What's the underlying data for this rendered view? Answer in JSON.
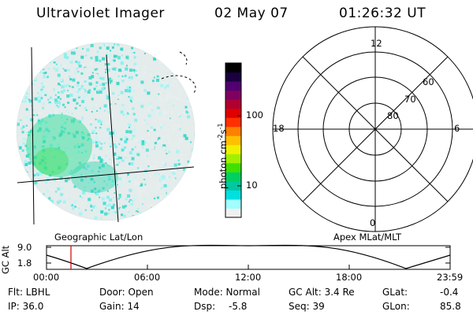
{
  "header": {
    "instrument": "Ultraviolet Imager",
    "date": "02 May 07",
    "time": "01:26:32 UT"
  },
  "colorbar": {
    "unit_label": "photon cm",
    "unit_exp1": "-2",
    "unit_mid": "s",
    "unit_exp2": "-1",
    "ticks": [
      "100",
      "10"
    ],
    "colors": [
      "#f0f0f0",
      "#a0ffff",
      "#00e0e0",
      "#00c8a0",
      "#00d060",
      "#40e000",
      "#a0f000",
      "#f0f000",
      "#ffc000",
      "#ff8000",
      "#ff3000",
      "#e00000",
      "#b00030",
      "#800060",
      "#500070",
      "#1a0040",
      "#000000"
    ]
  },
  "polar": {
    "top": "12",
    "right": "6",
    "left": "18",
    "bottom": "0",
    "lat_labels": [
      "60",
      "70",
      "80"
    ]
  },
  "coords": {
    "left": "Geographic Lat/Lon",
    "right": "Apex MLat/MLT"
  },
  "timeline": {
    "axis_label": "GC Alt",
    "y_top": "9.0",
    "y_bottom": "1.8",
    "x_ticks": [
      "00:00",
      "06:00",
      "12:00",
      "18:00",
      "23:59"
    ]
  },
  "info": {
    "flt": "Flt: LBHL",
    "door": "Door: Open",
    "mode": "Mode: Normal",
    "gcalt": "GC Alt: 3.4 Re",
    "glat_label": "GLat:",
    "glat_value": "-0.4",
    "ip": "IP: 36.0",
    "gain": "Gain: 14",
    "dsp_label": "Dsp:",
    "dsp_value": "-5.8",
    "seq": "Seq: 39",
    "glon_label": "GLon:",
    "glon_value": "85.8"
  }
}
